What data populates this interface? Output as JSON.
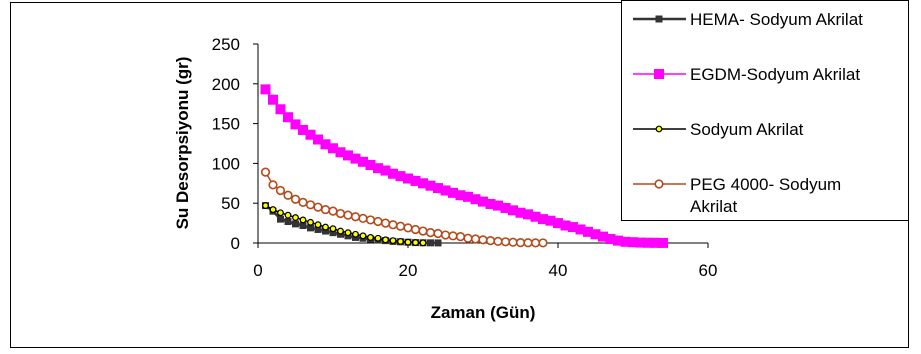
{
  "chart_data": {
    "type": "line",
    "title": "",
    "xlabel": "Zaman (Gün)",
    "ylabel": "Su Desorpsiyonu (gr)",
    "xlim": [
      0,
      60
    ],
    "ylim": [
      0,
      250
    ],
    "xticks": [
      "0",
      "20",
      "40",
      "60"
    ],
    "yticks": [
      "0",
      "50",
      "100",
      "150",
      "200",
      "250"
    ],
    "grid": false,
    "legend_position": "top-right",
    "series": [
      {
        "name": "HEMA- Sodyum Akrilat",
        "color": "#333333",
        "marker": "small-square",
        "x": [
          1,
          2,
          3,
          4,
          5,
          6,
          7,
          8,
          9,
          10,
          11,
          12,
          13,
          14,
          15,
          16,
          17,
          18,
          19,
          20,
          21,
          22,
          23,
          24
        ],
        "y": [
          47,
          40,
          30,
          27,
          24,
          22,
          19,
          17,
          15,
          13,
          11,
          9,
          7,
          6,
          5,
          4,
          3,
          2,
          1.5,
          1,
          0.5,
          0.3,
          0.2,
          0.1
        ]
      },
      {
        "name": "EGDM-Sodyum Akrilat",
        "color": "#ff00ff",
        "marker": "square",
        "x": [
          1,
          2,
          3,
          4,
          5,
          6,
          7,
          8,
          9,
          10,
          11,
          12,
          13,
          14,
          15,
          16,
          17,
          18,
          19,
          20,
          21,
          22,
          23,
          24,
          25,
          26,
          27,
          28,
          29,
          30,
          31,
          32,
          33,
          34,
          35,
          36,
          37,
          38,
          39,
          40,
          41,
          42,
          43,
          44,
          45,
          46,
          47,
          48,
          49,
          50,
          51,
          52,
          53,
          54
        ],
        "y": [
          193,
          180,
          168,
          158,
          149,
          142,
          136,
          130,
          124,
          119,
          114,
          110,
          106,
          102,
          98,
          94,
          91,
          87,
          84,
          81,
          78,
          75,
          72,
          69,
          66,
          63,
          60,
          58,
          55,
          52,
          49,
          47,
          44,
          41,
          38,
          36,
          33,
          30,
          28,
          25,
          22,
          20,
          17,
          14,
          11,
          8,
          5,
          3,
          1.5,
          1,
          0.5,
          0.3,
          0.2,
          0.1
        ]
      },
      {
        "name": "Sodyum Akrilat",
        "color": "#000000",
        "marker": "circle-yellow",
        "x": [
          1,
          2,
          3,
          4,
          5,
          6,
          7,
          8,
          9,
          10,
          11,
          12,
          13,
          14,
          15,
          16,
          17,
          18,
          19,
          20,
          21,
          22
        ],
        "y": [
          47,
          42,
          38,
          35,
          32,
          29,
          26,
          23,
          20,
          18,
          15,
          13,
          11,
          9,
          7,
          6,
          4,
          3,
          2,
          1,
          0.5,
          0.2
        ]
      },
      {
        "name": "PEG 4000- Sodyum Akrilat",
        "color": "#b5491a",
        "marker": "circle-open",
        "x": [
          1,
          2,
          3,
          4,
          5,
          6,
          7,
          8,
          9,
          10,
          11,
          12,
          13,
          14,
          15,
          16,
          17,
          18,
          19,
          20,
          21,
          22,
          23,
          24,
          25,
          26,
          27,
          28,
          29,
          30,
          31,
          32,
          33,
          34,
          35,
          36,
          37,
          38
        ],
        "y": [
          89,
          73,
          66,
          60,
          55,
          51,
          48,
          45,
          42,
          40,
          37,
          35,
          33,
          31,
          29,
          27,
          25,
          23,
          21,
          19,
          17,
          15,
          13,
          12,
          10,
          9,
          8,
          6,
          5,
          4,
          3,
          2,
          1.5,
          1,
          0.5,
          0.3,
          0.2,
          0.1
        ]
      }
    ]
  },
  "legend": {
    "items": [
      {
        "lines": [
          "HEMA- Sodyum Akrilat"
        ]
      },
      {
        "lines": [
          "EGDM-Sodyum Akrilat"
        ]
      },
      {
        "lines": [
          "Sodyum Akrilat"
        ]
      },
      {
        "lines": [
          "PEG 4000- Sodyum",
          "Akrilat"
        ]
      }
    ]
  }
}
